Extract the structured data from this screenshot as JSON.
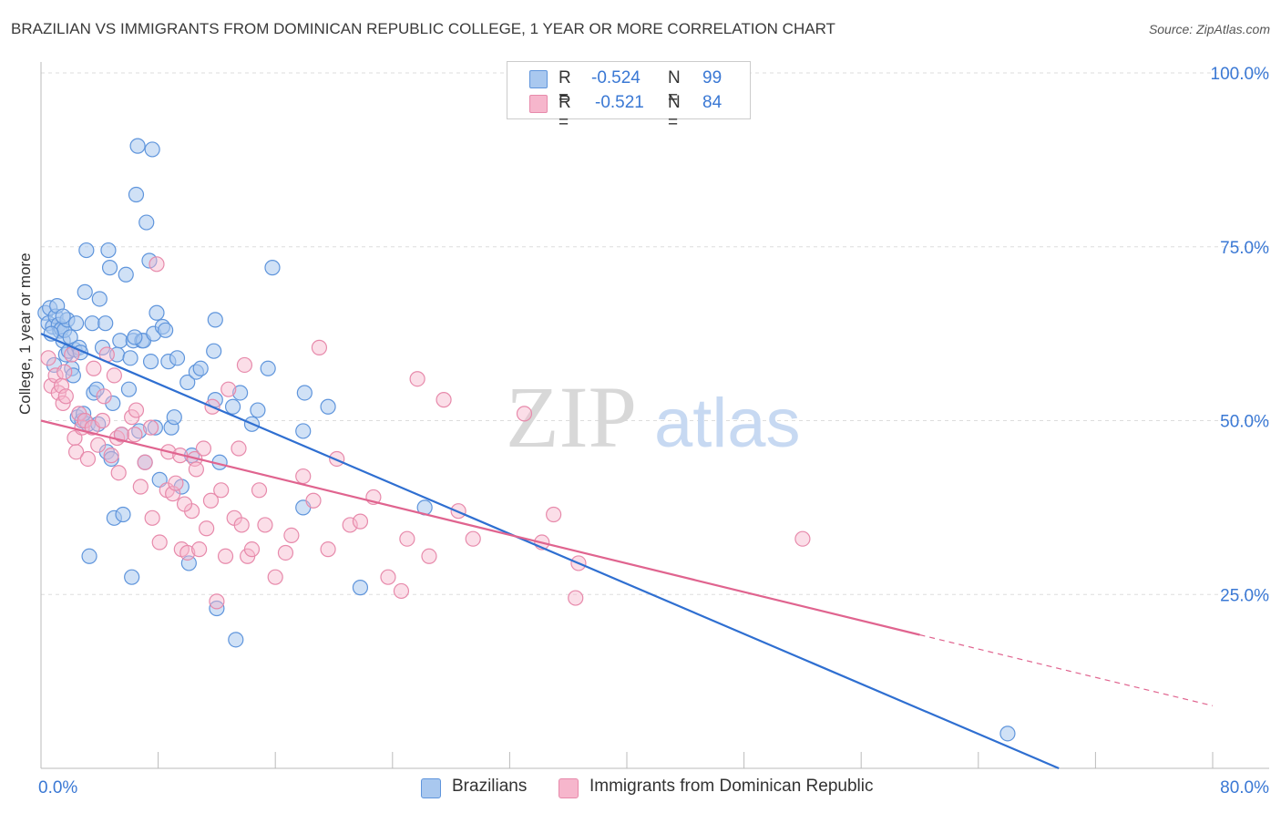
{
  "title": "BRAZILIAN VS IMMIGRANTS FROM DOMINICAN REPUBLIC COLLEGE, 1 YEAR OR MORE CORRELATION CHART",
  "source": "Source: ZipAtlas.com",
  "watermark": {
    "zip": "ZIP",
    "atlas": "atlas"
  },
  "legend": {
    "r_label": "R =",
    "n_label": "N =",
    "series": [
      {
        "r": "-0.524",
        "n": "99"
      },
      {
        "r": "-0.521",
        "n": "84"
      }
    ]
  },
  "colors": {
    "blue_fill": "#a9c8ef",
    "blue_stroke": "#5f95dc",
    "blue_line": "#2f6fd1",
    "pink_fill": "#f6b6cc",
    "pink_stroke": "#e78aab",
    "pink_line": "#e0648f",
    "axis_text": "#3a78d4",
    "grid": "#dddddd"
  },
  "chart_data": {
    "type": "scatter",
    "xlabel": "",
    "ylabel": "College, 1 year or more",
    "xlim": [
      0,
      80
    ],
    "ylim": [
      0,
      100
    ],
    "x_ticks": [
      "0.0%",
      "80.0%"
    ],
    "y_ticks": [
      "100.0%",
      "75.0%",
      "50.0%",
      "25.0%"
    ],
    "y_tick_values": [
      100,
      75,
      50,
      25
    ],
    "grid": true,
    "legend_position": "top-center",
    "series": [
      {
        "name": "Brazilians",
        "trend": {
          "x0": 0,
          "y0": 62.5,
          "x1": 69.5,
          "y1": 0
        },
        "points": [
          [
            0.3,
            65.5
          ],
          [
            0.5,
            64.0
          ],
          [
            0.6,
            66.2
          ],
          [
            0.8,
            63.5
          ],
          [
            0.9,
            58.0
          ],
          [
            1.0,
            65.0
          ],
          [
            1.1,
            66.5
          ],
          [
            1.2,
            63.8
          ],
          [
            1.3,
            62.9
          ],
          [
            1.4,
            63.2
          ],
          [
            1.5,
            61.5
          ],
          [
            1.6,
            63.0
          ],
          [
            1.7,
            59.5
          ],
          [
            1.8,
            64.5
          ],
          [
            1.9,
            60.0
          ],
          [
            2.0,
            62.0
          ],
          [
            2.1,
            57.5
          ],
          [
            2.2,
            56.5
          ],
          [
            2.3,
            60.2
          ],
          [
            2.4,
            64.0
          ],
          [
            2.5,
            50.5
          ],
          [
            2.6,
            60.5
          ],
          [
            2.7,
            59.8
          ],
          [
            2.8,
            50.0
          ],
          [
            3.0,
            68.5
          ],
          [
            3.1,
            74.5
          ],
          [
            3.2,
            49.5
          ],
          [
            3.3,
            30.5
          ],
          [
            3.5,
            64.0
          ],
          [
            3.6,
            54.0
          ],
          [
            3.8,
            54.5
          ],
          [
            4.0,
            67.5
          ],
          [
            4.2,
            60.5
          ],
          [
            4.4,
            64.0
          ],
          [
            4.5,
            45.5
          ],
          [
            4.6,
            74.5
          ],
          [
            4.7,
            72.0
          ],
          [
            4.8,
            44.5
          ],
          [
            4.9,
            52.5
          ],
          [
            5.0,
            36.0
          ],
          [
            5.2,
            59.5
          ],
          [
            5.4,
            61.5
          ],
          [
            5.5,
            48.0
          ],
          [
            5.6,
            36.5
          ],
          [
            5.8,
            71.0
          ],
          [
            6.0,
            54.5
          ],
          [
            6.1,
            59.0
          ],
          [
            6.2,
            27.5
          ],
          [
            6.3,
            61.5
          ],
          [
            6.5,
            82.5
          ],
          [
            6.6,
            89.5
          ],
          [
            6.7,
            48.5
          ],
          [
            6.9,
            61.5
          ],
          [
            7.0,
            61.5
          ],
          [
            7.1,
            44.0
          ],
          [
            7.2,
            78.5
          ],
          [
            7.4,
            73.0
          ],
          [
            7.5,
            58.5
          ],
          [
            7.6,
            89.0
          ],
          [
            7.7,
            62.5
          ],
          [
            7.8,
            49.0
          ],
          [
            7.9,
            65.5
          ],
          [
            8.1,
            41.5
          ],
          [
            8.3,
            63.5
          ],
          [
            8.7,
            58.5
          ],
          [
            8.9,
            49.0
          ],
          [
            9.1,
            50.5
          ],
          [
            9.3,
            59.0
          ],
          [
            9.6,
            40.5
          ],
          [
            10.0,
            55.5
          ],
          [
            10.1,
            29.5
          ],
          [
            10.3,
            45.0
          ],
          [
            10.6,
            57.0
          ],
          [
            10.9,
            57.5
          ],
          [
            11.8,
            60.0
          ],
          [
            11.9,
            64.5
          ],
          [
            11.9,
            53.0
          ],
          [
            12.0,
            23.0
          ],
          [
            12.2,
            44.0
          ],
          [
            13.1,
            52.0
          ],
          [
            13.3,
            18.5
          ],
          [
            13.6,
            54.0
          ],
          [
            14.4,
            49.5
          ],
          [
            14.8,
            51.5
          ],
          [
            15.5,
            57.5
          ],
          [
            15.8,
            72.0
          ],
          [
            17.9,
            37.5
          ],
          [
            17.9,
            48.5
          ],
          [
            18.0,
            54.0
          ],
          [
            19.6,
            52.0
          ],
          [
            21.8,
            26.0
          ],
          [
            26.2,
            37.5
          ],
          [
            66.0,
            5.0
          ],
          [
            0.7,
            62.5
          ],
          [
            1.5,
            65.0
          ],
          [
            2.9,
            51.0
          ],
          [
            3.9,
            49.5
          ],
          [
            6.4,
            62.0
          ],
          [
            8.5,
            63.0
          ]
        ]
      },
      {
        "name": "Immigrants from Dominican Republic",
        "trend": {
          "x0": 0,
          "y0": 50.0,
          "x1": 60.0,
          "y1": 19.2,
          "dash_to_x": 80,
          "dash_to_y": 9.0
        },
        "points": [
          [
            0.5,
            59.0
          ],
          [
            0.7,
            55.0
          ],
          [
            1.0,
            56.5
          ],
          [
            1.2,
            54.0
          ],
          [
            1.4,
            55.0
          ],
          [
            1.5,
            52.5
          ],
          [
            1.6,
            57.0
          ],
          [
            1.7,
            53.5
          ],
          [
            2.1,
            59.5
          ],
          [
            2.3,
            47.5
          ],
          [
            2.4,
            45.5
          ],
          [
            2.6,
            51.0
          ],
          [
            2.8,
            49.0
          ],
          [
            3.0,
            50.0
          ],
          [
            3.2,
            44.5
          ],
          [
            3.5,
            49.0
          ],
          [
            3.6,
            57.5
          ],
          [
            3.9,
            46.5
          ],
          [
            4.2,
            50.0
          ],
          [
            4.3,
            53.5
          ],
          [
            4.5,
            59.5
          ],
          [
            4.8,
            45.0
          ],
          [
            5.0,
            56.5
          ],
          [
            5.2,
            47.5
          ],
          [
            5.3,
            42.5
          ],
          [
            5.5,
            48.0
          ],
          [
            6.2,
            50.5
          ],
          [
            6.4,
            48.0
          ],
          [
            6.5,
            51.5
          ],
          [
            6.8,
            40.5
          ],
          [
            7.1,
            44.0
          ],
          [
            7.5,
            49.0
          ],
          [
            7.6,
            36.0
          ],
          [
            7.9,
            72.5
          ],
          [
            8.1,
            32.5
          ],
          [
            8.6,
            40.0
          ],
          [
            8.7,
            45.5
          ],
          [
            9.0,
            39.5
          ],
          [
            9.2,
            41.0
          ],
          [
            9.5,
            45.0
          ],
          [
            9.6,
            31.5
          ],
          [
            10.0,
            31.0
          ],
          [
            10.3,
            37.0
          ],
          [
            10.5,
            44.5
          ],
          [
            10.6,
            43.0
          ],
          [
            10.8,
            31.5
          ],
          [
            11.1,
            46.0
          ],
          [
            11.3,
            34.5
          ],
          [
            11.6,
            38.5
          ],
          [
            11.7,
            52.0
          ],
          [
            12.0,
            24.0
          ],
          [
            12.3,
            40.0
          ],
          [
            12.6,
            30.5
          ],
          [
            12.8,
            54.5
          ],
          [
            13.2,
            36.0
          ],
          [
            13.5,
            46.0
          ],
          [
            13.7,
            35.0
          ],
          [
            13.9,
            58.0
          ],
          [
            14.1,
            30.5
          ],
          [
            14.4,
            31.5
          ],
          [
            14.9,
            40.0
          ],
          [
            15.3,
            35.0
          ],
          [
            16.0,
            27.5
          ],
          [
            16.7,
            31.0
          ],
          [
            17.1,
            33.5
          ],
          [
            17.9,
            42.0
          ],
          [
            18.6,
            38.5
          ],
          [
            19.0,
            60.5
          ],
          [
            19.6,
            31.5
          ],
          [
            20.2,
            44.5
          ],
          [
            21.1,
            35.0
          ],
          [
            21.8,
            35.5
          ],
          [
            22.7,
            39.0
          ],
          [
            23.7,
            27.5
          ],
          [
            24.6,
            25.5
          ],
          [
            25.0,
            33.0
          ],
          [
            25.7,
            56.0
          ],
          [
            26.5,
            30.5
          ],
          [
            27.5,
            53.0
          ],
          [
            28.5,
            37.0
          ],
          [
            29.5,
            33.0
          ],
          [
            33.0,
            51.0
          ],
          [
            34.2,
            32.5
          ],
          [
            35.0,
            36.5
          ]
        ]
      }
    ],
    "extra_pink_points": [
      [
        36.5,
        24.5
      ],
      [
        36.7,
        29.5
      ],
      [
        52.0,
        33.0
      ],
      [
        9.8,
        38.0
      ]
    ]
  }
}
